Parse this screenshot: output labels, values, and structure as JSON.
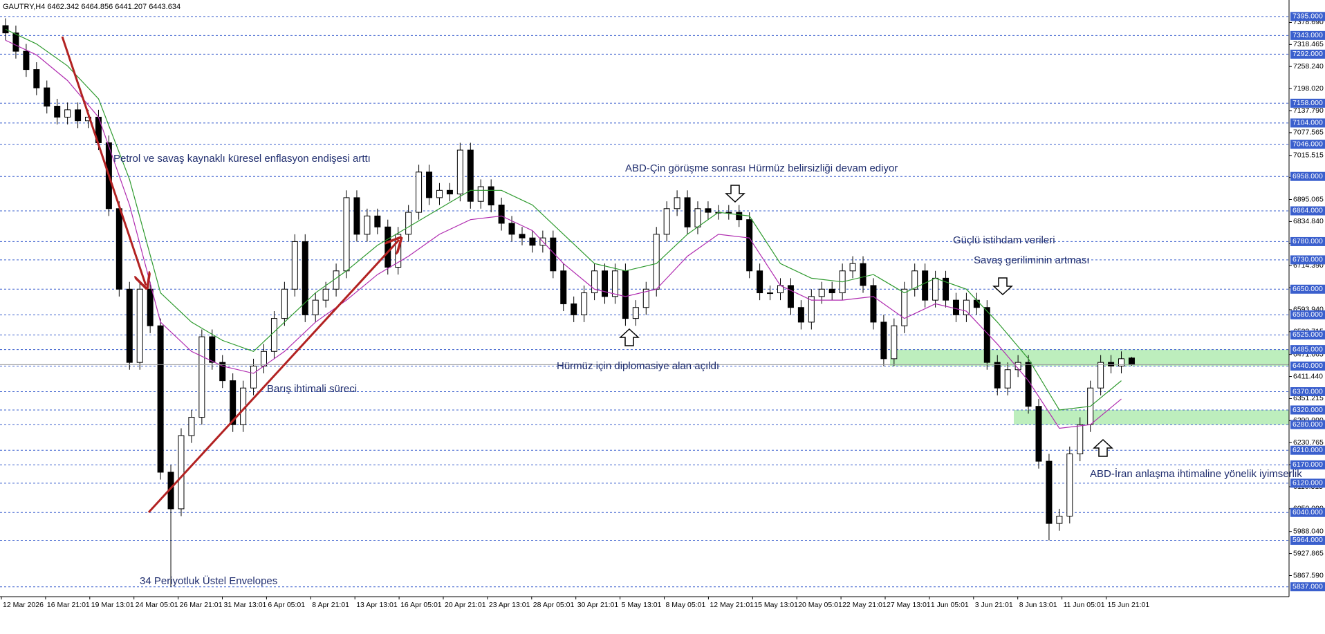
{
  "chart_data": {
    "type": "candlestick",
    "title": "GAUTRY,H4  6462.342 6464.856 6441.207 6443.634",
    "x_labels": [
      "12 Mar 2026",
      "16 Mar 21:01",
      "19 Mar 13:01",
      "24 Mar 05:01",
      "26 Mar 21:01",
      "31 Mar 13:01",
      "6 Apr 05:01",
      "8 Apr 21:01",
      "13 Apr 13:01",
      "16 Apr 05:01",
      "20 Apr 21:01",
      "23 Apr 13:01",
      "28 Apr 05:01",
      "30 Apr 21:01",
      "5 May 13:01",
      "8 May 05:01",
      "12 May 21:01",
      "15 May 13:01",
      "20 May 05:01",
      "22 May 21:01",
      "27 May 13:01",
      "1 Jun 05:01",
      "3 Jun 21:01",
      "8 Jun 13:01",
      "11 Jun 05:01",
      "15 Jun 21:01"
    ],
    "open": [
      7370,
      7350,
      7300,
      7250,
      7200,
      7150,
      7120,
      7140,
      7110,
      7120,
      7050,
      6870,
      6650,
      6450,
      6650,
      6550,
      6150,
      6050,
      6250,
      6300,
      6520,
      6450,
      6400,
      6280,
      6380,
      6440,
      6480,
      6570,
      6650,
      6780,
      6580,
      6620,
      6650,
      6700,
      6900,
      6800,
      6850,
      6820,
      6710,
      6800,
      6860,
      6970,
      6900,
      6920,
      6910,
      7030,
      6890,
      6930,
      6880,
      6830,
      6800,
      6790,
      6770,
      6790,
      6700,
      6610,
      6580,
      6640,
      6700,
      6630,
      6700,
      6570,
      6600,
      6650,
      6800,
      6870,
      6900,
      6820,
      6870,
      6860,
      6860,
      6860,
      6840,
      6700,
      6640,
      6640,
      6660,
      6600,
      6560,
      6630,
      6650,
      6640,
      6700,
      6720,
      6660,
      6560,
      6460,
      6550,
      6650,
      6700,
      6620,
      6680,
      6620,
      6580,
      6620,
      6600,
      6450,
      6380,
      6430,
      6450,
      6330,
      6180,
      6010,
      6030,
      6200,
      6280,
      6380,
      6450,
      6440,
      6462
    ],
    "high": [
      7390,
      7370,
      7320,
      7270,
      7220,
      7170,
      7160,
      7160,
      7140,
      7140,
      7070,
      6890,
      6670,
      6670,
      6670,
      6570,
      6170,
      6270,
      6320,
      6540,
      6540,
      6470,
      6420,
      6400,
      6460,
      6500,
      6590,
      6670,
      6800,
      6800,
      6640,
      6670,
      6720,
      6920,
      6920,
      6870,
      6870,
      6840,
      6820,
      6880,
      6990,
      6990,
      6940,
      6940,
      7050,
      7050,
      6950,
      6950,
      6900,
      6850,
      6820,
      6810,
      6810,
      6810,
      6720,
      6630,
      6660,
      6720,
      6720,
      6720,
      6720,
      6620,
      6670,
      6820,
      6890,
      6920,
      6920,
      6890,
      6890,
      6880,
      6880,
      6880,
      6860,
      6720,
      6660,
      6680,
      6680,
      6620,
      6650,
      6670,
      6670,
      6720,
      6740,
      6740,
      6680,
      6580,
      6570,
      6670,
      6720,
      6720,
      6700,
      6700,
      6640,
      6640,
      6640,
      6620,
      6470,
      6450,
      6470,
      6470,
      6350,
      6200,
      6050,
      6220,
      6300,
      6400,
      6470,
      6470,
      6480,
      6465
    ],
    "low": [
      7330,
      7280,
      7230,
      7180,
      7130,
      7100,
      7100,
      7090,
      7090,
      7030,
      6850,
      6630,
      6430,
      6430,
      6530,
      6130,
      5837,
      6030,
      6230,
      6280,
      6430,
      6380,
      6260,
      6260,
      6360,
      6420,
      6460,
      6550,
      6630,
      6560,
      6560,
      6600,
      6630,
      6680,
      6780,
      6780,
      6800,
      6690,
      6690,
      6780,
      6840,
      6880,
      6880,
      6890,
      6890,
      6870,
      6870,
      6860,
      6810,
      6780,
      6770,
      6750,
      6750,
      6680,
      6590,
      6560,
      6560,
      6620,
      6610,
      6610,
      6550,
      6550,
      6580,
      6630,
      6780,
      6850,
      6800,
      6800,
      6840,
      6840,
      6840,
      6820,
      6680,
      6620,
      6620,
      6620,
      6580,
      6540,
      6540,
      6610,
      6620,
      6620,
      6680,
      6640,
      6540,
      6440,
      6440,
      6530,
      6630,
      6600,
      6600,
      6600,
      6560,
      6560,
      6580,
      6430,
      6360,
      6360,
      6410,
      6310,
      6160,
      5964,
      5990,
      6010,
      6180,
      6260,
      6360,
      6420,
      6420,
      6441
    ],
    "close": [
      7350,
      7300,
      7250,
      7200,
      7150,
      7120,
      7140,
      7110,
      7120,
      7050,
      6870,
      6650,
      6450,
      6650,
      6550,
      6150,
      6050,
      6250,
      6300,
      6520,
      6450,
      6400,
      6280,
      6380,
      6440,
      6480,
      6570,
      6650,
      6780,
      6580,
      6620,
      6650,
      6700,
      6900,
      6800,
      6850,
      6820,
      6710,
      6800,
      6860,
      6970,
      6900,
      6920,
      6910,
      7030,
      6890,
      6930,
      6880,
      6830,
      6800,
      6790,
      6770,
      6790,
      6700,
      6610,
      6580,
      6640,
      6700,
      6630,
      6700,
      6570,
      6600,
      6650,
      6800,
      6870,
      6900,
      6820,
      6870,
      6860,
      6860,
      6860,
      6840,
      6700,
      6640,
      6640,
      6660,
      6600,
      6560,
      6630,
      6650,
      6640,
      6700,
      6720,
      6660,
      6560,
      6460,
      6550,
      6650,
      6700,
      6620,
      6680,
      6620,
      6580,
      6620,
      6600,
      6450,
      6380,
      6430,
      6450,
      6330,
      6180,
      6010,
      6030,
      6200,
      6280,
      6380,
      6450,
      6440,
      6460,
      6444
    ],
    "up_color": "#ffffff",
    "down_color": "#000000",
    "envelopes": {
      "x": [
        0,
        3,
        6,
        9,
        12,
        15,
        18,
        21,
        24,
        27,
        30,
        33,
        36,
        39,
        42,
        45,
        48,
        51,
        54,
        57,
        60,
        63,
        66,
        69,
        72,
        75,
        78,
        81,
        84,
        87,
        90,
        93,
        96,
        99,
        102,
        105,
        108
      ],
      "upper": [
        7360,
        7320,
        7260,
        7170,
        6950,
        6640,
        6560,
        6510,
        6480,
        6560,
        6640,
        6700,
        6770,
        6820,
        6870,
        6920,
        6920,
        6880,
        6800,
        6720,
        6700,
        6720,
        6800,
        6860,
        6850,
        6720,
        6680,
        6670,
        6690,
        6640,
        6680,
        6650,
        6560,
        6460,
        6320,
        6330,
        6400
      ],
      "lower": [
        7330,
        7290,
        7220,
        7120,
        6880,
        6560,
        6480,
        6440,
        6420,
        6480,
        6560,
        6620,
        6690,
        6740,
        6800,
        6840,
        6850,
        6810,
        6720,
        6650,
        6630,
        6650,
        6740,
        6800,
        6790,
        6660,
        6620,
        6620,
        6630,
        6570,
        6610,
        6590,
        6500,
        6400,
        6270,
        6280,
        6350
      ],
      "upper_color": "#2e9a2e",
      "lower_color": "#b02cb0"
    },
    "ylim": [
      5810,
      7440
    ],
    "yticks": [
      {
        "value": 7378.69,
        "label": "7378.690"
      },
      {
        "value": 7318.465,
        "label": "7318.465"
      },
      {
        "value": 7258.24,
        "label": "7258.240"
      },
      {
        "value": 7198.02,
        "label": "7198.020"
      },
      {
        "value": 7137.79,
        "label": "7137.790"
      },
      {
        "value": 7077.565,
        "label": "7077.565"
      },
      {
        "value": 7015.515,
        "label": "7015.515"
      },
      {
        "value": 6955.29,
        "label": "6955.290"
      },
      {
        "value": 6895.065,
        "label": "6895.065"
      },
      {
        "value": 6834.84,
        "label": "6834.840"
      },
      {
        "value": 6774.615,
        "label": "6774.615"
      },
      {
        "value": 6714.39,
        "label": "6714.390"
      },
      {
        "value": 6654.165,
        "label": "6654.165"
      },
      {
        "value": 6593.94,
        "label": "6593.940"
      },
      {
        "value": 6533.715,
        "label": "6533.715"
      },
      {
        "value": 6471.665,
        "label": "6471.665"
      },
      {
        "value": 6411.44,
        "label": "6411.440"
      },
      {
        "value": 6351.215,
        "label": "6351.215"
      },
      {
        "value": 6290.99,
        "label": "6290.990"
      },
      {
        "value": 6230.765,
        "label": "6230.765"
      },
      {
        "value": 6170.54,
        "label": "6170.540"
      },
      {
        "value": 6110.315,
        "label": "6110.315"
      },
      {
        "value": 6050.09,
        "label": "6050.090"
      },
      {
        "value": 5988.04,
        "label": "5988.040"
      },
      {
        "value": 5927.865,
        "label": "5927.865"
      },
      {
        "value": 5867.59,
        "label": "5867.590"
      }
    ],
    "levels": [
      {
        "value": 7395,
        "label": "7395.000"
      },
      {
        "value": 7343,
        "label": "7343.000"
      },
      {
        "value": 7292,
        "label": "7292.000"
      },
      {
        "value": 7158,
        "label": "7158.000"
      },
      {
        "value": 7104,
        "label": "7104.000"
      },
      {
        "value": 7046,
        "label": "7046.000"
      },
      {
        "value": 6958,
        "label": "6958.000"
      },
      {
        "value": 6864,
        "label": "6864.000"
      },
      {
        "value": 6780,
        "label": "6780.000"
      },
      {
        "value": 6730,
        "label": "6730.000"
      },
      {
        "value": 6650,
        "label": "6650.000"
      },
      {
        "value": 6580,
        "label": "6580.000"
      },
      {
        "value": 6525,
        "label": "6525.000"
      },
      {
        "value": 6485,
        "label": "6485.000"
      },
      {
        "value": 6440,
        "label": "6440.000"
      },
      {
        "value": 6370,
        "label": "6370.000"
      },
      {
        "value": 6320,
        "label": "6320.000"
      },
      {
        "value": 6280,
        "label": "6280.000"
      },
      {
        "value": 6210,
        "label": "6210.000"
      },
      {
        "value": 6170,
        "label": "6170.000"
      },
      {
        "value": 6120,
        "label": "6120.000"
      },
      {
        "value": 6040,
        "label": "6040.000"
      },
      {
        "value": 5964,
        "label": "5964.000"
      },
      {
        "value": 5837,
        "label": "5837.000"
      }
    ],
    "level_color": "#3a5fcd",
    "zones": [
      [
        6440,
        6485
      ],
      [
        6280,
        6320
      ]
    ],
    "zone_color": "#bdeebd",
    "annotations": [
      "Petrol ve savaş kaynaklı küresel enflasyon endişesi arttı",
      "ABD-Çin görüşme sonrası Hürmüz belirsizliği devam ediyor",
      "Güçlü istihdam verileri",
      "Savaş geriliminin artması",
      "Hürmüz için diplomasiye alan açıldı",
      "Barış ihtimali süreci",
      "ABD-İran anlaşma ihtimaline yönelik iyimserlik",
      "34 Periyotluk Üstel Envelopes"
    ]
  }
}
